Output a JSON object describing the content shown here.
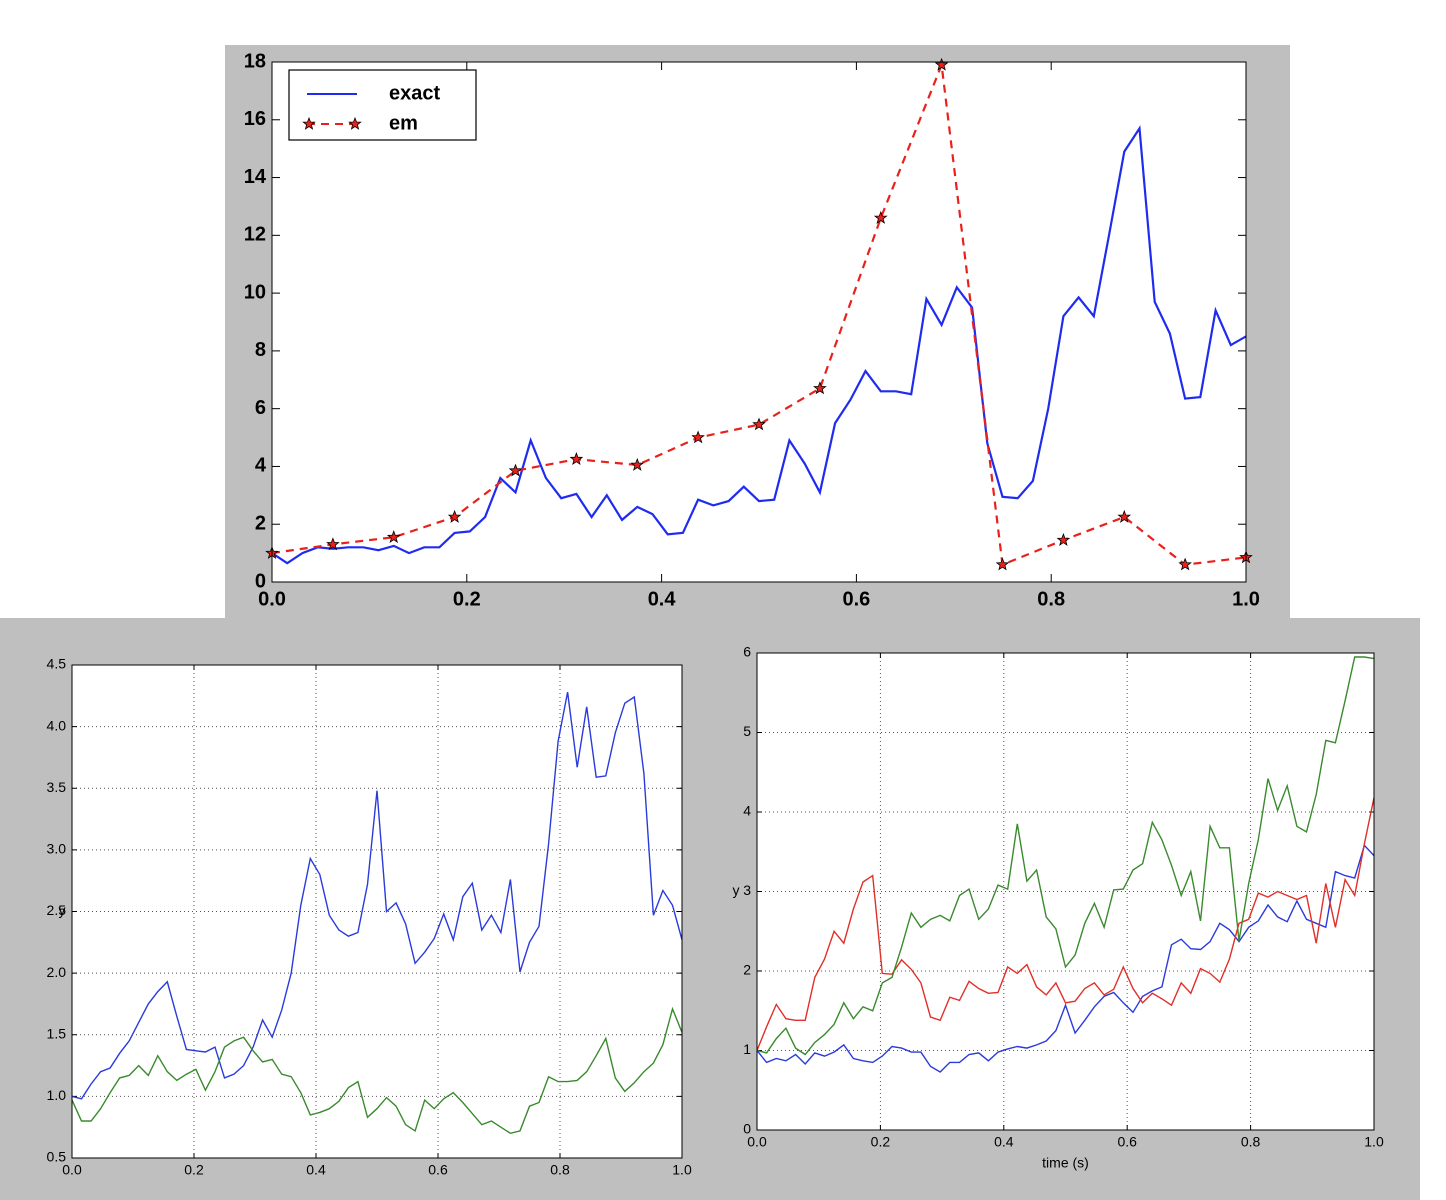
{
  "chart_data": [
    {
      "type": "line",
      "grid": false,
      "legend": "upper left",
      "xlim": [
        0,
        1
      ],
      "ylim": [
        0,
        18
      ],
      "xticks": [
        {
          "value": 0,
          "label": "0.0"
        },
        0.2,
        0.4,
        0.6,
        0.8,
        {
          "value": 1,
          "label": "1.0"
        }
      ],
      "yticks": [
        0,
        2,
        4,
        6,
        8,
        10,
        12,
        14,
        16,
        18
      ],
      "x": [
        0,
        0.015625,
        0.03125,
        0.046875,
        0.0625,
        0.078125,
        0.09375,
        0.109375,
        0.125,
        0.140625,
        0.15625,
        0.171875,
        0.1875,
        0.203125,
        0.21875,
        0.234375,
        0.25,
        0.265625,
        0.28125,
        0.296875,
        0.3125,
        0.328125,
        0.34375,
        0.359375,
        0.375,
        0.390625,
        0.40625,
        0.421875,
        0.4375,
        0.453125,
        0.46875,
        0.484375,
        0.5,
        0.515625,
        0.53125,
        0.546875,
        0.5625,
        0.578125,
        0.59375,
        0.609375,
        0.625,
        0.640625,
        0.65625,
        0.671875,
        0.6875,
        0.703125,
        0.71875,
        0.734375,
        0.75,
        0.765625,
        0.78125,
        0.796875,
        0.8125,
        0.828125,
        0.84375,
        0.859375,
        0.875,
        0.890625,
        0.90625,
        0.921875,
        0.9375,
        0.953125,
        0.96875,
        0.984375,
        1
      ],
      "series": [
        {
          "name": "exact",
          "color": "#1f2cf0",
          "linestyle": "solid",
          "values": [
            1.0,
            0.65,
            1.0,
            1.2,
            1.15,
            1.2,
            1.2,
            1.1,
            1.25,
            1.0,
            1.2,
            1.2,
            1.7,
            1.75,
            2.25,
            3.6,
            3.1,
            4.9,
            3.6,
            2.9,
            3.05,
            2.25,
            3.0,
            2.15,
            2.6,
            2.35,
            1.65,
            1.7,
            2.85,
            2.65,
            2.8,
            3.3,
            2.8,
            2.85,
            4.9,
            4.1,
            3.1,
            5.5,
            6.3,
            7.3,
            6.6,
            6.6,
            6.5,
            9.8,
            8.9,
            10.2,
            9.5,
            4.8,
            2.95,
            2.9,
            3.5,
            6.0,
            9.2,
            9.85,
            9.2,
            12.0,
            14.9,
            15.7,
            9.7,
            8.6,
            6.35,
            6.4,
            9.4,
            8.2,
            8.5
          ]
        },
        {
          "name": "em",
          "color": "#e8211c",
          "linestyle": "dashed",
          "marker": "star",
          "x": [
            0,
            0.0625,
            0.125,
            0.1875,
            0.25,
            0.3125,
            0.375,
            0.4375,
            0.5,
            0.5625,
            0.625,
            0.6875,
            0.75,
            0.8125,
            0.875,
            0.9375,
            1
          ],
          "values": [
            1.0,
            1.3,
            1.55,
            2.25,
            3.85,
            4.25,
            4.05,
            5.0,
            5.45,
            6.7,
            12.6,
            17.9,
            0.6,
            1.45,
            2.25,
            0.6,
            0.85
          ]
        }
      ]
    },
    {
      "type": "line",
      "grid": true,
      "ylabel": "y",
      "xlim": [
        0,
        1
      ],
      "ylim": [
        0.5,
        4.5
      ],
      "xticks": [
        {
          "value": 0,
          "label": "0.0"
        },
        0.2,
        0.4,
        0.6,
        0.8,
        {
          "value": 1,
          "label": "1.0"
        }
      ],
      "yticks": [
        0.5,
        {
          "value": 1,
          "label": "1.0"
        },
        1.5,
        {
          "value": 2,
          "label": "2.0"
        },
        2.5,
        {
          "value": 3,
          "label": "3.0"
        },
        3.5,
        {
          "value": 4,
          "label": "4.0"
        },
        4.5
      ],
      "x": [
        0,
        0.015625,
        0.03125,
        0.046875,
        0.0625,
        0.078125,
        0.09375,
        0.109375,
        0.125,
        0.140625,
        0.15625,
        0.171875,
        0.1875,
        0.203125,
        0.21875,
        0.234375,
        0.25,
        0.265625,
        0.28125,
        0.296875,
        0.3125,
        0.328125,
        0.34375,
        0.359375,
        0.375,
        0.390625,
        0.40625,
        0.421875,
        0.4375,
        0.453125,
        0.46875,
        0.484375,
        0.5,
        0.515625,
        0.53125,
        0.546875,
        0.5625,
        0.578125,
        0.59375,
        0.609375,
        0.625,
        0.640625,
        0.65625,
        0.671875,
        0.6875,
        0.703125,
        0.71875,
        0.734375,
        0.75,
        0.765625,
        0.78125,
        0.796875,
        0.8125,
        0.828125,
        0.84375,
        0.859375,
        0.875,
        0.890625,
        0.90625,
        0.921875,
        0.9375,
        0.953125,
        0.96875,
        0.984375,
        1
      ],
      "series": [
        {
          "color": "#2a3bdc",
          "values": [
            1.0,
            0.98,
            1.1,
            1.2,
            1.23,
            1.35,
            1.45,
            1.6,
            1.75,
            1.85,
            1.93,
            1.65,
            1.38,
            1.37,
            1.36,
            1.4,
            1.15,
            1.18,
            1.25,
            1.4,
            1.62,
            1.48,
            1.7,
            2.0,
            2.55,
            2.93,
            2.8,
            2.47,
            2.35,
            2.3,
            2.33,
            2.72,
            3.48,
            2.5,
            2.57,
            2.4,
            2.08,
            2.17,
            2.28,
            2.48,
            2.27,
            2.62,
            2.73,
            2.35,
            2.47,
            2.33,
            2.76,
            2.01,
            2.25,
            2.38,
            3.05,
            3.88,
            4.28,
            3.67,
            4.16,
            3.59,
            3.6,
            3.95,
            4.19,
            4.24,
            3.62,
            2.47,
            2.67,
            2.55,
            2.27
          ]
        },
        {
          "color": "#3a8a2e",
          "values": [
            0.97,
            0.8,
            0.8,
            0.9,
            1.03,
            1.15,
            1.17,
            1.25,
            1.17,
            1.33,
            1.2,
            1.13,
            1.18,
            1.22,
            1.05,
            1.2,
            1.4,
            1.45,
            1.48,
            1.37,
            1.28,
            1.3,
            1.18,
            1.16,
            1.03,
            0.85,
            0.87,
            0.9,
            0.96,
            1.07,
            1.12,
            0.83,
            0.9,
            0.99,
            0.92,
            0.77,
            0.72,
            0.97,
            0.9,
            0.98,
            1.03,
            0.95,
            0.86,
            0.77,
            0.8,
            0.75,
            0.7,
            0.72,
            0.92,
            0.95,
            1.16,
            1.12,
            1.12,
            1.13,
            1.2,
            1.33,
            1.47,
            1.15,
            1.04,
            1.11,
            1.2,
            1.27,
            1.42,
            1.71,
            1.52
          ]
        }
      ]
    },
    {
      "type": "line",
      "grid": true,
      "ylabel": "y",
      "xlabel": "time (s)",
      "xlim": [
        0,
        1
      ],
      "ylim": [
        0,
        6
      ],
      "xticks": [
        {
          "value": 0,
          "label": "0.0"
        },
        0.2,
        0.4,
        0.6,
        0.8,
        {
          "value": 1,
          "label": "1.0"
        }
      ],
      "yticks": [
        0,
        1,
        2,
        3,
        4,
        5,
        6
      ],
      "x": [
        0,
        0.015625,
        0.03125,
        0.046875,
        0.0625,
        0.078125,
        0.09375,
        0.109375,
        0.125,
        0.140625,
        0.15625,
        0.171875,
        0.1875,
        0.203125,
        0.21875,
        0.234375,
        0.25,
        0.265625,
        0.28125,
        0.296875,
        0.3125,
        0.328125,
        0.34375,
        0.359375,
        0.375,
        0.390625,
        0.40625,
        0.421875,
        0.4375,
        0.453125,
        0.46875,
        0.484375,
        0.5,
        0.515625,
        0.53125,
        0.546875,
        0.5625,
        0.578125,
        0.59375,
        0.609375,
        0.625,
        0.640625,
        0.65625,
        0.671875,
        0.6875,
        0.703125,
        0.71875,
        0.734375,
        0.75,
        0.765625,
        0.78125,
        0.796875,
        0.8125,
        0.828125,
        0.84375,
        0.859375,
        0.875,
        0.890625,
        0.90625,
        0.921875,
        0.9375,
        0.953125,
        0.96875,
        0.984375,
        1
      ],
      "series": [
        {
          "color": "#2a3bdc",
          "values": [
            1.0,
            0.85,
            0.9,
            0.87,
            0.95,
            0.83,
            0.97,
            0.93,
            0.98,
            1.07,
            0.9,
            0.87,
            0.85,
            0.93,
            1.05,
            1.03,
            0.98,
            0.98,
            0.8,
            0.73,
            0.85,
            0.85,
            0.95,
            0.97,
            0.87,
            0.98,
            1.02,
            1.05,
            1.03,
            1.07,
            1.12,
            1.25,
            1.57,
            1.22,
            1.38,
            1.55,
            1.68,
            1.73,
            1.6,
            1.48,
            1.68,
            1.75,
            1.8,
            2.33,
            2.4,
            2.28,
            2.27,
            2.37,
            2.6,
            2.52,
            2.37,
            2.55,
            2.63,
            2.83,
            2.68,
            2.62,
            2.88,
            2.65,
            2.6,
            2.55,
            3.25,
            3.2,
            3.17,
            3.58,
            3.45
          ]
        },
        {
          "color": "#e0302a",
          "values": [
            1.0,
            1.3,
            1.58,
            1.4,
            1.38,
            1.38,
            1.92,
            2.15,
            2.5,
            2.35,
            2.78,
            3.12,
            3.2,
            1.97,
            1.96,
            2.14,
            2.02,
            1.85,
            1.42,
            1.38,
            1.67,
            1.63,
            1.87,
            1.78,
            1.72,
            1.73,
            2.05,
            1.97,
            2.08,
            1.8,
            1.7,
            1.85,
            1.6,
            1.62,
            1.78,
            1.85,
            1.7,
            1.77,
            2.05,
            1.78,
            1.6,
            1.72,
            1.65,
            1.57,
            1.85,
            1.72,
            2.03,
            1.97,
            1.86,
            2.15,
            2.6,
            2.65,
            2.98,
            2.93,
            3.0,
            2.95,
            2.9,
            2.95,
            2.35,
            3.1,
            2.55,
            3.15,
            2.95,
            3.6,
            4.18
          ]
        },
        {
          "color": "#3a8a2e",
          "values": [
            1.0,
            0.97,
            1.15,
            1.28,
            1.03,
            0.95,
            1.1,
            1.2,
            1.33,
            1.6,
            1.4,
            1.55,
            1.5,
            1.85,
            1.92,
            2.3,
            2.73,
            2.55,
            2.65,
            2.7,
            2.63,
            2.95,
            3.03,
            2.65,
            2.78,
            3.08,
            3.03,
            3.85,
            3.13,
            3.27,
            2.68,
            2.53,
            2.05,
            2.2,
            2.6,
            2.85,
            2.55,
            3.02,
            3.03,
            3.27,
            3.35,
            3.87,
            3.65,
            3.33,
            2.95,
            3.25,
            2.63,
            3.82,
            3.55,
            3.55,
            2.38,
            3.1,
            3.65,
            4.42,
            4.02,
            4.33,
            3.82,
            3.75,
            4.22,
            4.9,
            4.87,
            5.4,
            5.95,
            5.95,
            5.93
          ]
        }
      ]
    }
  ]
}
